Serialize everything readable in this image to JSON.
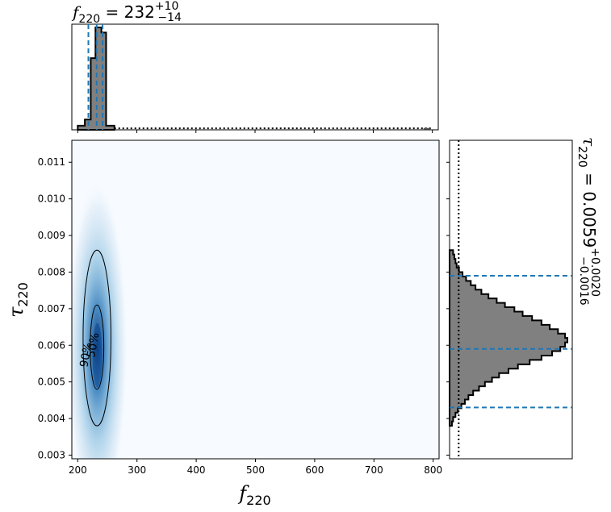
{
  "chart_data": [
    {
      "type": "heatmap",
      "panel": "joint",
      "xlabel": {
        "symbol": "f",
        "sub": "220"
      },
      "ylabel": {
        "symbol": "τ",
        "sub": "220"
      },
      "xlim": [
        190,
        810
      ],
      "ylim": [
        0.0029,
        0.0116
      ],
      "xticks": [
        200,
        300,
        400,
        500,
        600,
        700,
        800
      ],
      "yticks": [
        0.003,
        0.004,
        0.005,
        0.006,
        0.007,
        0.008,
        0.009,
        0.01,
        0.011
      ],
      "ytick_labels": [
        "0.003",
        "0.004",
        "0.005",
        "0.006",
        "0.007",
        "0.008",
        "0.009",
        "0.010",
        "0.011"
      ],
      "colormap": "Blues",
      "density_peak": {
        "f": 233,
        "tau": 0.0059
      },
      "contours": [
        {
          "label": "50%",
          "f_range": [
            221,
            244
          ],
          "tau_range": [
            0.0048,
            0.0071
          ]
        },
        {
          "label": "90%",
          "f_range": [
            209,
            256
          ],
          "tau_range": [
            0.0038,
            0.0086
          ]
        }
      ]
    },
    {
      "type": "histogram",
      "panel": "f220-marginal",
      "title": {
        "symbol": "f",
        "sub": "220",
        "value": "232",
        "plus": "+10",
        "minus": "−14"
      },
      "bins": [
        {
          "x0": 200,
          "x1": 212,
          "height": 0.04
        },
        {
          "x0": 212,
          "x1": 222,
          "height": 0.1
        },
        {
          "x0": 222,
          "x1": 230,
          "height": 0.7
        },
        {
          "x0": 230,
          "x1": 240,
          "height": 1.0
        },
        {
          "x0": 240,
          "x1": 248,
          "height": 0.95
        },
        {
          "x0": 248,
          "x1": 262,
          "height": 0.04
        }
      ],
      "prior_level": 0.015,
      "quantile_lines": [
        218,
        232,
        242
      ],
      "accent_color": "#1f77b4",
      "fill_color": "#808080"
    },
    {
      "type": "histogram",
      "orientation": "horizontal",
      "panel": "tau220-marginal",
      "title": {
        "symbol": "τ",
        "sub": "220",
        "value": "0.0059",
        "plus": "+0.0020",
        "minus": "−0.0016"
      },
      "ylim": [
        0.0029,
        0.0116
      ],
      "counts": [
        0.02,
        0.03,
        0.05,
        0.07,
        0.1,
        0.13,
        0.16,
        0.2,
        0.25,
        0.3,
        0.36,
        0.42,
        0.5,
        0.58,
        0.68,
        0.78,
        0.87,
        0.94,
        0.98,
        1.0,
        0.98,
        0.92,
        0.85,
        0.78,
        0.7,
        0.62,
        0.55,
        0.47,
        0.4,
        0.33,
        0.27,
        0.22,
        0.18,
        0.14,
        0.11,
        0.08,
        0.06,
        0.05,
        0.04,
        0.03
      ],
      "bin_start": 0.0038,
      "bin_width": 0.00012,
      "prior_level": 0.05,
      "quantile_lines": [
        0.0043,
        0.0059,
        0.0079
      ],
      "accent_color": "#1f77b4",
      "fill_color": "#808080"
    }
  ]
}
